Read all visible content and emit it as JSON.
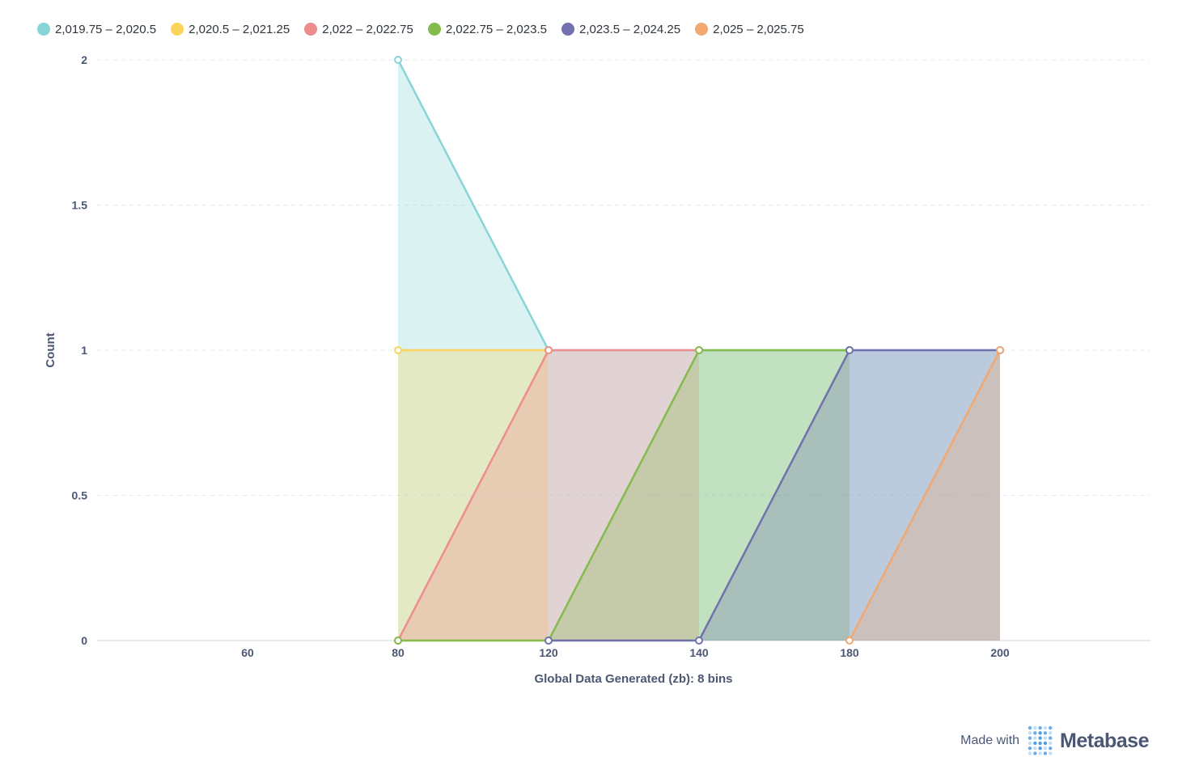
{
  "chart_data": {
    "type": "area",
    "title": "",
    "xlabel": "Global Data Generated (zb): 8 bins",
    "ylabel": "Count",
    "x": [
      70,
      90,
      110,
      130,
      150,
      170,
      190
    ],
    "x_tick_labels": [
      "60",
      "80",
      "120",
      "140",
      "180",
      "200"
    ],
    "x_tick_positions": [
      50,
      70,
      90,
      110,
      130,
      150
    ],
    "xlim": [
      30,
      170
    ],
    "ylim": [
      0,
      2
    ],
    "y_ticks": [
      0,
      0.5,
      1,
      1.5,
      2
    ],
    "y_tick_labels": [
      "0",
      "0.5",
      "1",
      "1.5",
      "2"
    ],
    "grid": true,
    "legend_position": "top-left",
    "series": [
      {
        "name": "2,019.75 – 2,020.5",
        "color": "#88d4d6",
        "x": [
          70,
          90,
          110,
          130,
          150
        ],
        "values": [
          2,
          1,
          1,
          1,
          1
        ]
      },
      {
        "name": "2,020.5 – 2,021.25",
        "color": "#f9d45c",
        "x": [
          70,
          90
        ],
        "values": [
          1,
          1
        ]
      },
      {
        "name": "2,022 – 2,022.75",
        "color": "#ef8c8c",
        "x": [
          70,
          90,
          110
        ],
        "values": [
          0,
          1,
          1
        ]
      },
      {
        "name": "2,022.75 – 2,023.5",
        "color": "#84bb4c",
        "x": [
          70,
          90,
          110,
          130
        ],
        "values": [
          0,
          0,
          1,
          1
        ]
      },
      {
        "name": "2,023.5 – 2,024.25",
        "color": "#7172ad",
        "x": [
          90,
          110,
          130,
          150
        ],
        "values": [
          0,
          0,
          1,
          1
        ]
      },
      {
        "name": "2,025 – 2,025.75",
        "color": "#f2a86f",
        "x": [
          130,
          150
        ],
        "values": [
          0,
          1
        ]
      }
    ]
  },
  "branding": {
    "made_with": "Made with",
    "name": "Metabase",
    "logo_color": "#509ee3"
  }
}
